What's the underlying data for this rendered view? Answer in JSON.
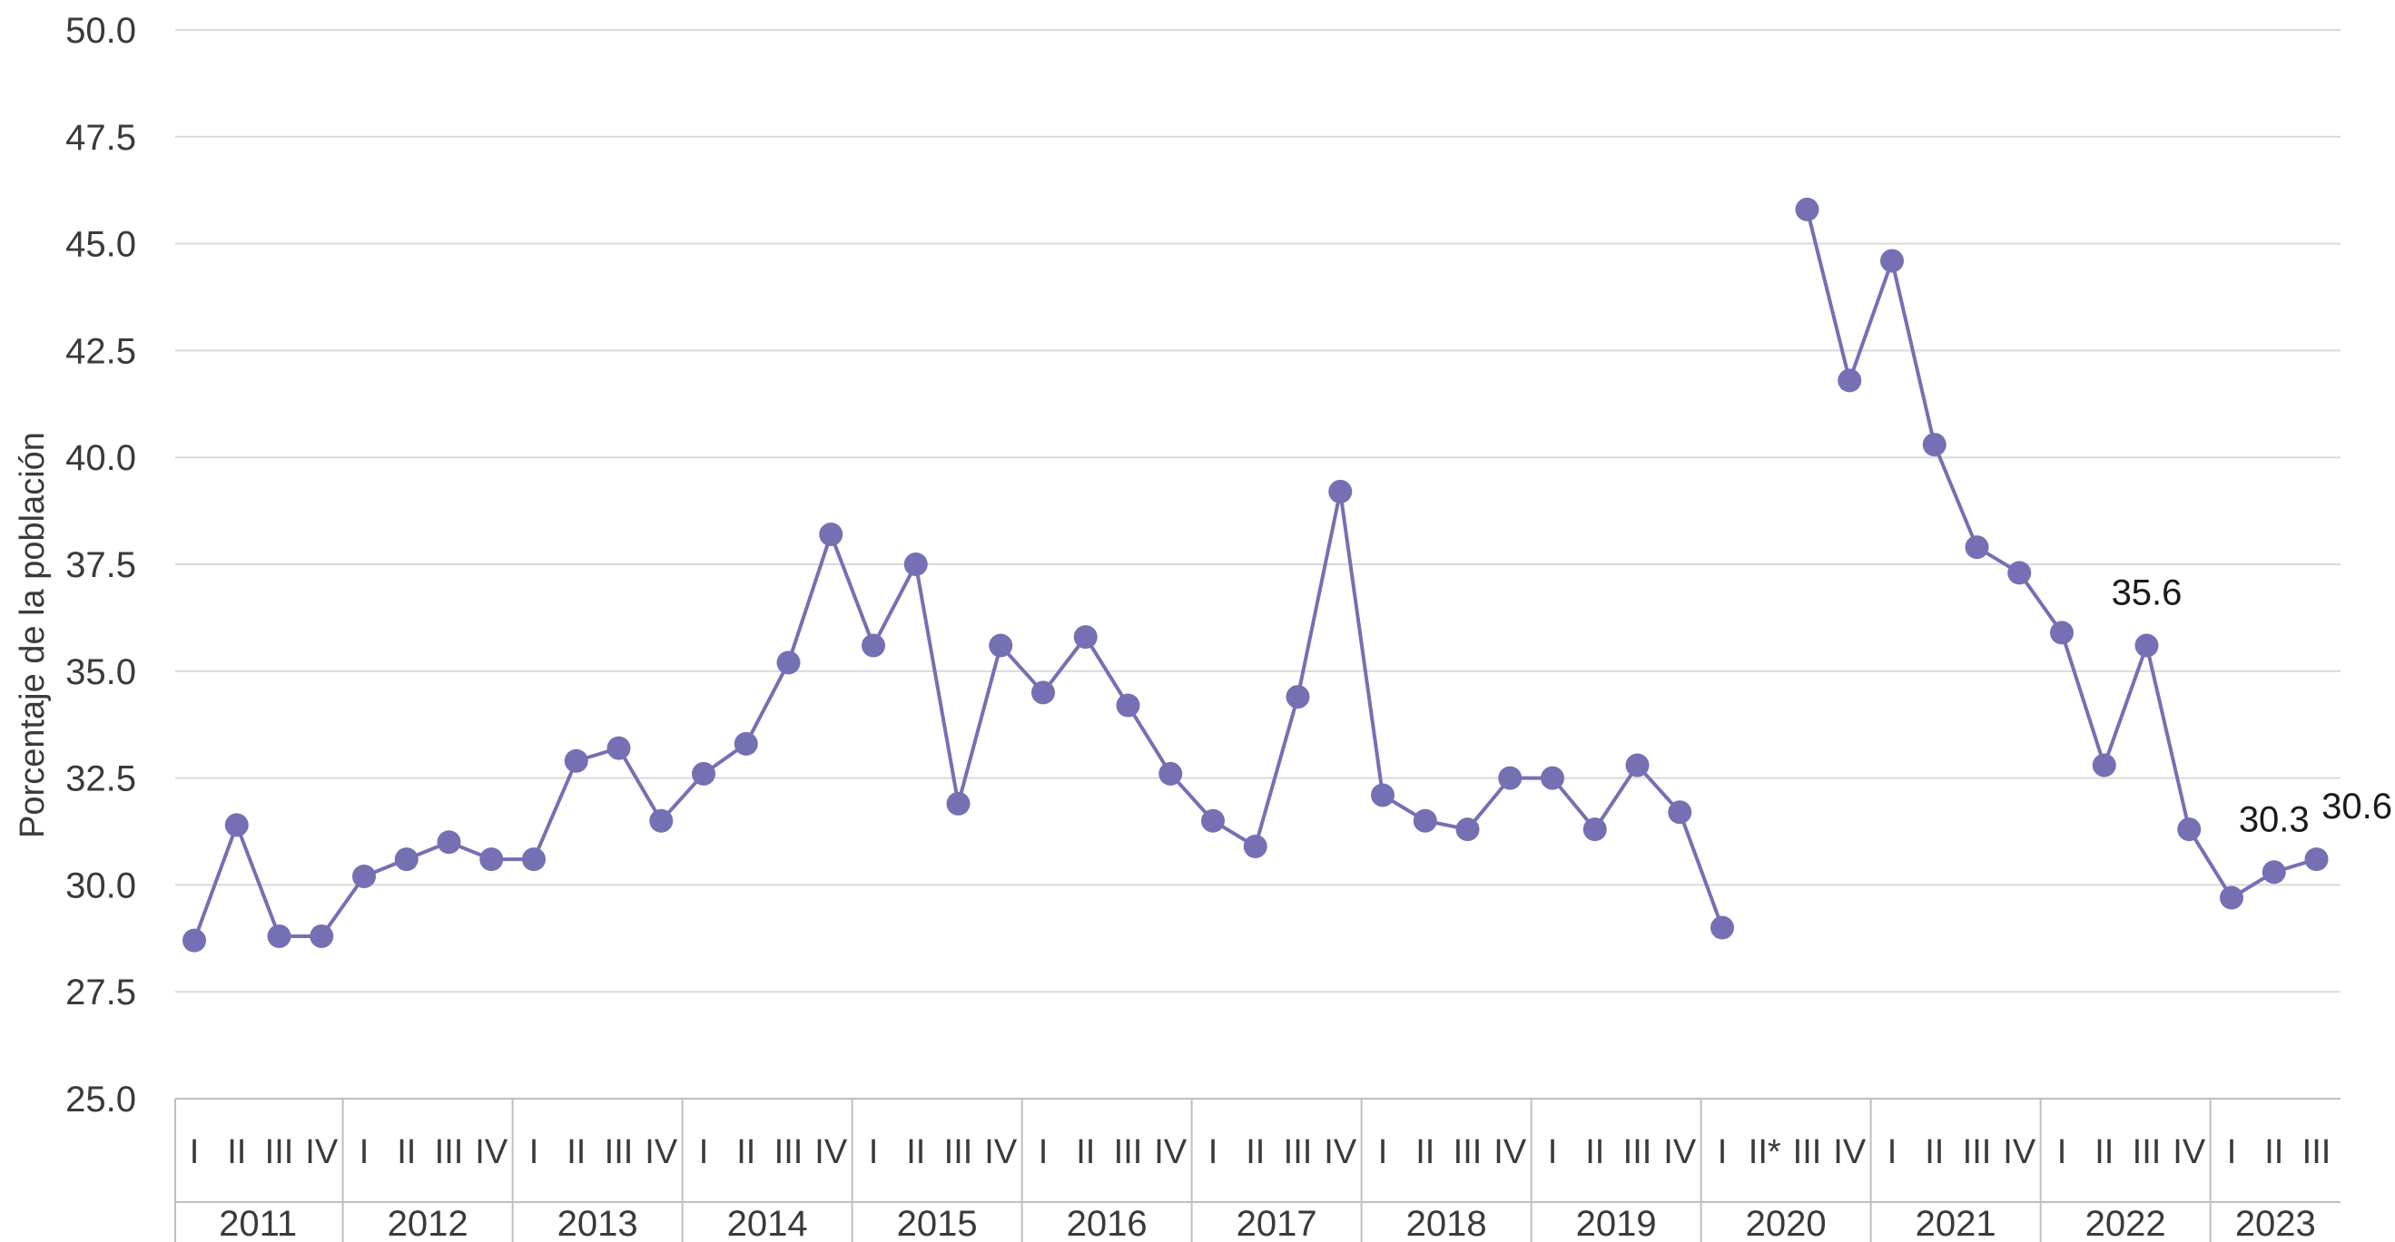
{
  "chart_data": {
    "type": "line",
    "ylabel": "Porcentaje de la población",
    "ylim": [
      25.0,
      50.0
    ],
    "yticks": [
      "25.0",
      "27.5",
      "30.0",
      "32.5",
      "35.0",
      "37.5",
      "40.0",
      "42.5",
      "45.0",
      "47.5",
      "50.0"
    ],
    "grid": true,
    "color": "#7570b3",
    "years": [
      {
        "year": "2011",
        "quarters": [
          "I",
          "II",
          "III",
          "IV"
        ]
      },
      {
        "year": "2012",
        "quarters": [
          "I",
          "II",
          "III",
          "IV"
        ]
      },
      {
        "year": "2013",
        "quarters": [
          "I",
          "II",
          "III",
          "IV"
        ]
      },
      {
        "year": "2014",
        "quarters": [
          "I",
          "II",
          "III",
          "IV"
        ]
      },
      {
        "year": "2015",
        "quarters": [
          "I",
          "II",
          "III",
          "IV"
        ]
      },
      {
        "year": "2016",
        "quarters": [
          "I",
          "II",
          "III",
          "IV"
        ]
      },
      {
        "year": "2017",
        "quarters": [
          "I",
          "II",
          "III",
          "IV"
        ]
      },
      {
        "year": "2018",
        "quarters": [
          "I",
          "II",
          "III",
          "IV"
        ]
      },
      {
        "year": "2019",
        "quarters": [
          "I",
          "II",
          "III",
          "IV"
        ]
      },
      {
        "year": "2020",
        "quarters": [
          "I",
          "II*",
          "III",
          "IV"
        ]
      },
      {
        "year": "2021",
        "quarters": [
          "I",
          "II",
          "III",
          "IV"
        ]
      },
      {
        "year": "2022",
        "quarters": [
          "I",
          "II",
          "III",
          "IV"
        ]
      },
      {
        "year": "2023",
        "quarters": [
          "I",
          "II",
          "III"
        ]
      }
    ],
    "values": [
      28.7,
      31.4,
      28.8,
      28.8,
      30.2,
      30.6,
      31.0,
      30.6,
      30.6,
      32.9,
      33.2,
      31.5,
      32.6,
      33.3,
      35.2,
      38.2,
      35.6,
      37.5,
      31.9,
      35.6,
      34.5,
      35.8,
      34.2,
      32.6,
      31.5,
      30.9,
      34.4,
      39.2,
      32.1,
      31.5,
      31.3,
      32.5,
      32.5,
      31.3,
      32.8,
      31.7,
      29.0,
      null,
      45.8,
      41.8,
      44.6,
      40.3,
      37.9,
      37.3,
      35.9,
      32.8,
      35.6,
      31.3,
      29.7,
      30.3,
      30.6
    ],
    "data_labels": [
      {
        "index": 46,
        "text": "35.6"
      },
      {
        "index": 49,
        "text": "30.3"
      },
      {
        "index": 50,
        "text": "30.6"
      }
    ]
  }
}
